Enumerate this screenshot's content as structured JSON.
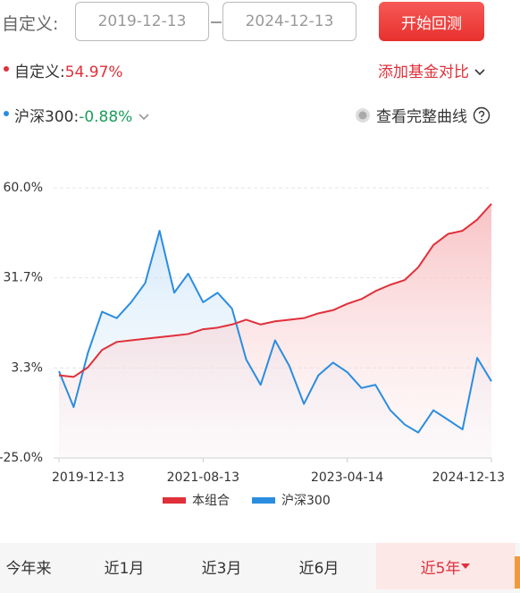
{
  "controls": {
    "label": "自定义:",
    "start_date": "2019-12-13",
    "end_date": "2024-12-13",
    "button": "开始回测"
  },
  "summary": {
    "custom_name": "自定义:",
    "custom_value": "54.97%",
    "add_compare": "添加基金对比",
    "index_name": "沪深300:",
    "index_value": "-0.88%",
    "full_curve": "查看完整曲线"
  },
  "chart_data": {
    "type": "line",
    "x": [
      "2019-12-13",
      "2020-02-13",
      "2020-04-13",
      "2020-06-12",
      "2020-08-13",
      "2020-10-13",
      "2020-12-11",
      "2021-02-10",
      "2021-04-13",
      "2021-06-11",
      "2021-08-13",
      "2021-10-13",
      "2021-12-13",
      "2022-02-11",
      "2022-04-13",
      "2022-06-13",
      "2022-08-12",
      "2022-10-13",
      "2022-12-13",
      "2023-02-13",
      "2023-04-14",
      "2023-06-13",
      "2023-08-11",
      "2023-10-13",
      "2023-12-13",
      "2024-02-08",
      "2024-04-12",
      "2024-06-13",
      "2024-08-13",
      "2024-10-14",
      "2024-12-13"
    ],
    "series": [
      {
        "name": "本组合",
        "color": "#e0303a",
        "values": [
          1.0,
          0.5,
          3.5,
          9.0,
          11.5,
          12.0,
          12.5,
          13.0,
          13.5,
          14.0,
          15.5,
          16.0,
          17.0,
          18.5,
          17.0,
          18.0,
          18.5,
          19.0,
          20.5,
          21.5,
          23.5,
          25.0,
          27.5,
          29.5,
          31.0,
          35.0,
          42.0,
          45.5,
          46.5,
          50.0,
          54.97
        ]
      },
      {
        "name": "沪深300",
        "color": "#2a8de0",
        "values": [
          2.3,
          -9.0,
          8.0,
          21.0,
          19.0,
          24.0,
          30.0,
          46.5,
          27.0,
          33.0,
          24.0,
          27.0,
          22.0,
          6.0,
          -2.0,
          12.0,
          4.0,
          -8.0,
          1.0,
          5.0,
          2.0,
          -3.0,
          -2.0,
          -10.0,
          -14.5,
          -17.0,
          -10.0,
          -13.0,
          -16.0,
          6.5,
          -0.88
        ]
      }
    ],
    "xlim": [
      "2019-12-13",
      "2024-12-13"
    ],
    "xticks": [
      "2019-12-13",
      "2021-08-13",
      "2023-04-14",
      "2024-12-13"
    ],
    "ylim": [
      -25,
      60
    ],
    "yticks": [
      {
        "value": 60,
        "label": "60.0%"
      },
      {
        "value": 31.67,
        "label": "31.7%"
      },
      {
        "value": 3.33,
        "label": "3.3%"
      },
      {
        "value": -25,
        "label": "-25.0%"
      }
    ],
    "grid": true
  },
  "tabs": [
    "今年来",
    "近1月",
    "近3月",
    "近6月",
    "近5年"
  ]
}
